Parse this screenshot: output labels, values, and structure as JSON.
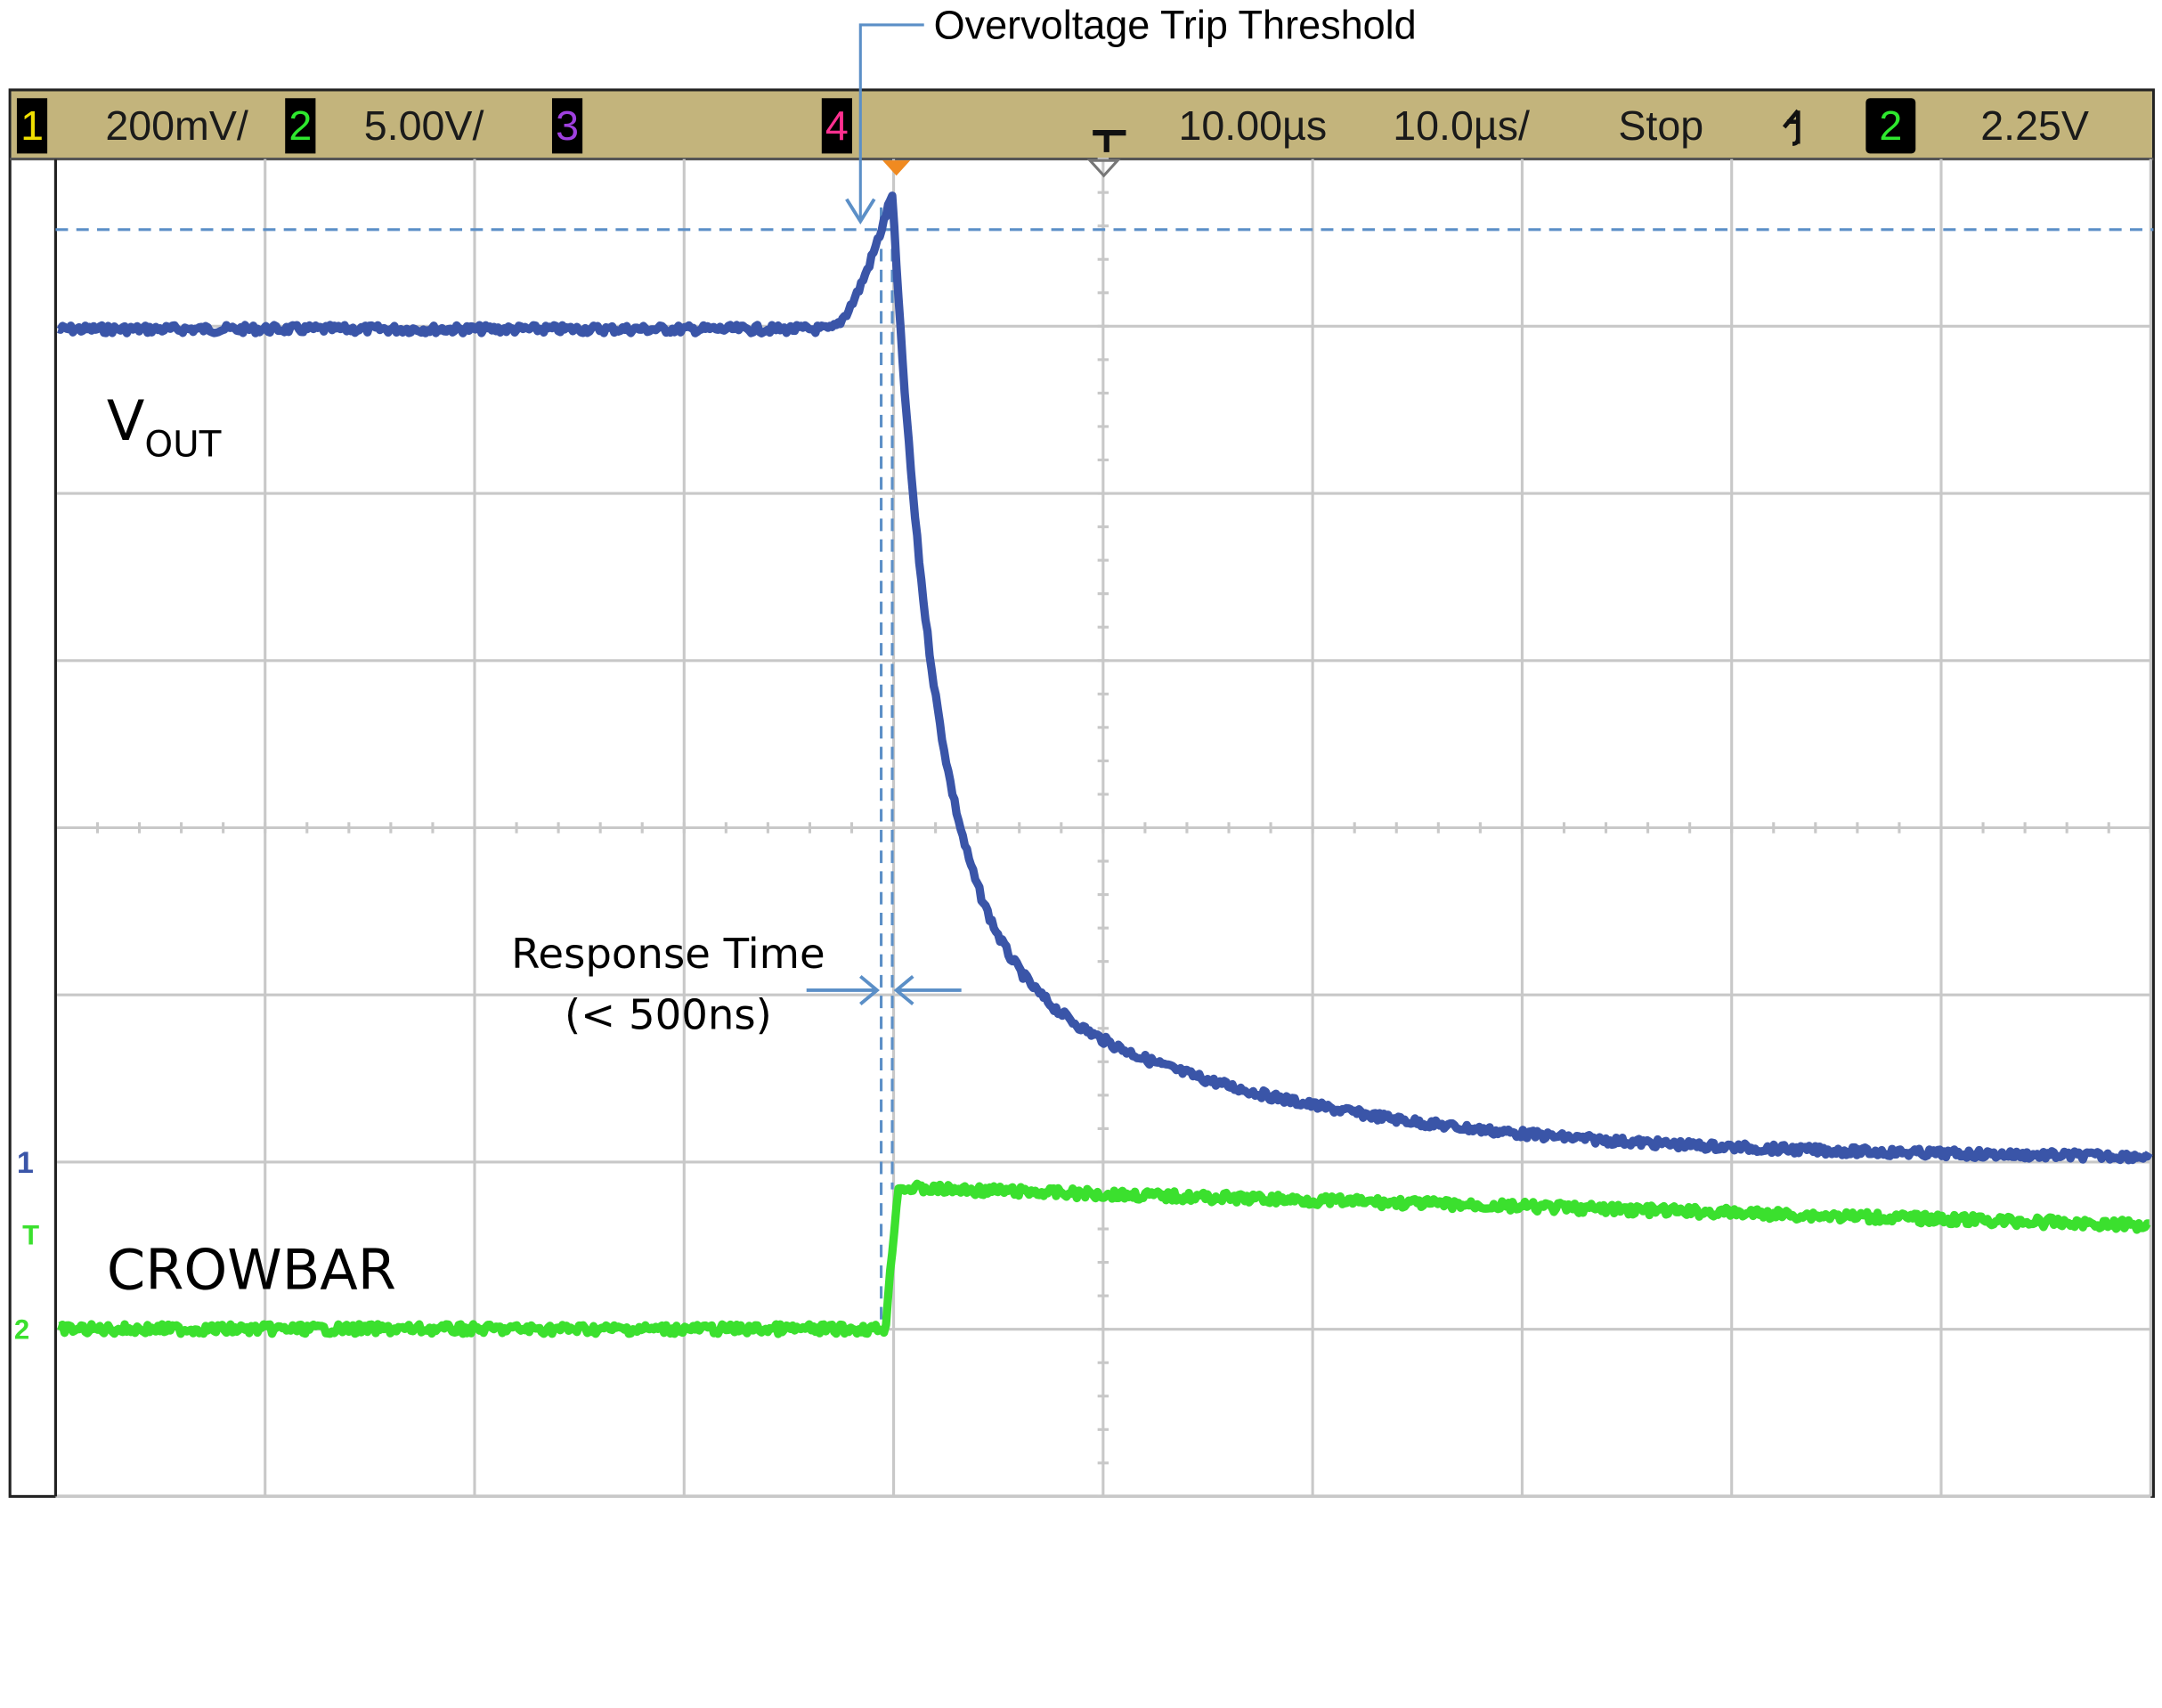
{
  "header": {
    "annotation": "Overvoltage Trip Threshold"
  },
  "scope_bar": {
    "channels": [
      {
        "number": "1",
        "scale": "200mV/"
      },
      {
        "number": "2",
        "scale": "5.00V/"
      },
      {
        "number": "3"
      },
      {
        "number": "4"
      }
    ],
    "delay": "10.00µs",
    "timebase": "10.0µs/",
    "status": "Stop",
    "trigger_source": "2",
    "trigger_level": "2.25V"
  },
  "labels": {
    "vout": "V",
    "vout_subscript": "OUT",
    "crowbar": "CROWBAR",
    "response_time": "Response Time",
    "response_time_note": "(< 500ns)"
  }
}
